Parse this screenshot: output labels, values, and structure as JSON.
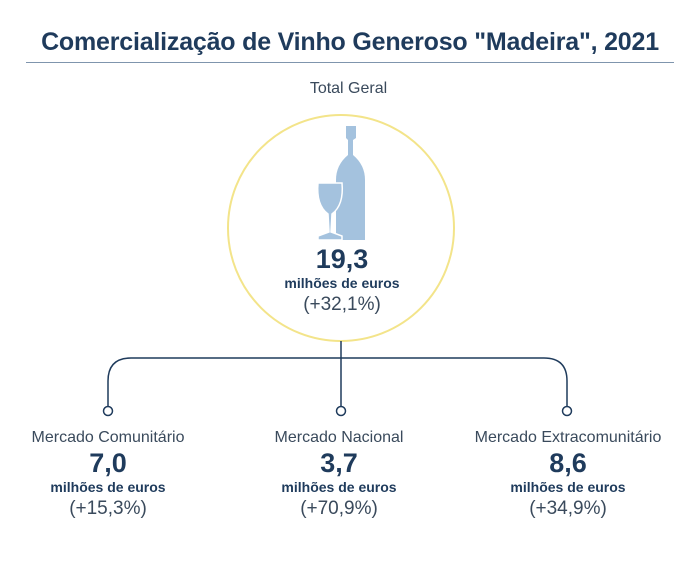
{
  "title": "Comercialização de Vinho Generoso \"Madeira\", 2021",
  "total": {
    "label": "Total Geral",
    "value": "19,3",
    "unit": "milhões de euros",
    "change": "(+32,1%)"
  },
  "markets": [
    {
      "name": "Mercado Comunitário",
      "value": "7,0",
      "unit": "milhões de euros",
      "change": "(+15,3%)"
    },
    {
      "name": "Mercado Nacional",
      "value": "3,7",
      "unit": "milhões de euros",
      "change": "(+70,9%)"
    },
    {
      "name": "Mercado Extracomunitário",
      "value": "8,6",
      "unit": "milhões de euros",
      "change": "(+34,9%)"
    }
  ],
  "colors": {
    "title": "#1f3b5c",
    "circle_border": "#f3e48a",
    "bottle_icon": "#a4c2de",
    "connector": "#1f3b5c"
  },
  "icons": [
    "wine-bottle-icon",
    "wine-glass-icon"
  ]
}
